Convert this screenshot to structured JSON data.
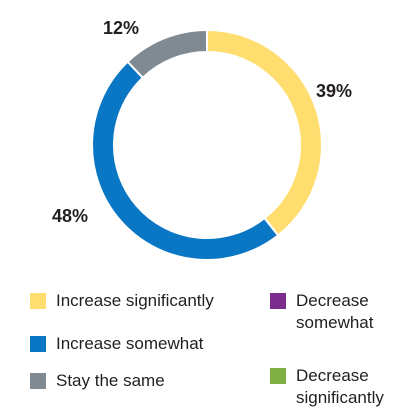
{
  "chart_data": {
    "type": "pie",
    "variant": "donut",
    "categories": [
      "Increase significantly",
      "Increase somewhat",
      "Stay the same",
      "Decrease somewhat",
      "Decrease significantly"
    ],
    "values": [
      39,
      48,
      12,
      0,
      0
    ],
    "data_labels": [
      "39%",
      "48%",
      "12%",
      "",
      ""
    ],
    "colors": [
      "#ffdd6e",
      "#0a77c4",
      "#808a92",
      "#7b2d8e",
      "#7fae42"
    ],
    "legend_position": "bottom"
  },
  "legend": {
    "items": [
      {
        "label": "Increase significantly",
        "color": "#ffdd6e"
      },
      {
        "label": "Increase somewhat",
        "color": "#0a77c4"
      },
      {
        "label": "Stay the same",
        "color": "#808a92"
      },
      {
        "label": "Decrease somewhat",
        "color": "#7b2d8e"
      },
      {
        "label": "Decrease significantly",
        "color": "#7fae42"
      }
    ]
  }
}
